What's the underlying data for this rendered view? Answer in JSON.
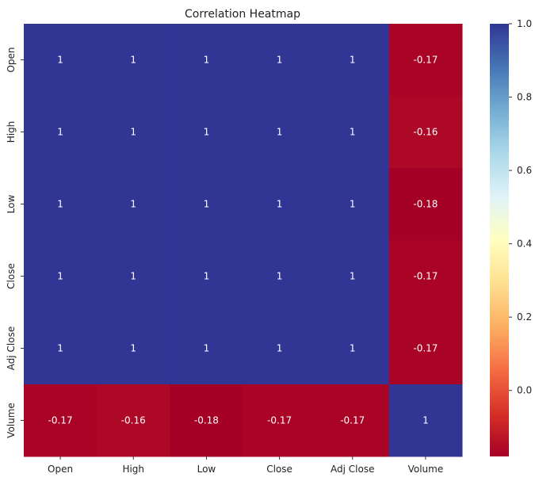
{
  "chart_data": {
    "type": "heatmap",
    "title": "Correlation Heatmap",
    "xlabel": "",
    "ylabel": "",
    "x_categories": [
      "Open",
      "High",
      "Low",
      "Close",
      "Adj Close",
      "Volume"
    ],
    "y_categories": [
      "Open",
      "High",
      "Low",
      "Close",
      "Adj Close",
      "Volume"
    ],
    "values": [
      [
        1,
        1,
        1,
        1,
        1,
        -0.17
      ],
      [
        1,
        1,
        1,
        1,
        1,
        -0.16
      ],
      [
        1,
        1,
        1,
        1,
        1,
        -0.18
      ],
      [
        1,
        1,
        1,
        1,
        1,
        -0.17
      ],
      [
        1,
        1,
        1,
        1,
        1,
        -0.17
      ],
      [
        -0.17,
        -0.16,
        -0.18,
        -0.17,
        -0.17,
        1
      ]
    ],
    "cell_labels": [
      [
        "1",
        "1",
        "1",
        "1",
        "1",
        "-0.17"
      ],
      [
        "1",
        "1",
        "1",
        "1",
        "1",
        "-0.16"
      ],
      [
        "1",
        "1",
        "1",
        "1",
        "1",
        "-0.18"
      ],
      [
        "1",
        "1",
        "1",
        "1",
        "1",
        "-0.17"
      ],
      [
        "1",
        "1",
        "1",
        "1",
        "1",
        "-0.17"
      ],
      [
        "-0.17",
        "-0.16",
        "-0.18",
        "-0.17",
        "-0.17",
        "1"
      ]
    ],
    "colormap": "RdYlBu",
    "vmin": -0.18,
    "vmax": 1.0,
    "colorbar_ticks": [
      0.0,
      0.2,
      0.4,
      0.6,
      0.8,
      1.0
    ],
    "colorbar_tick_labels": [
      "0.0",
      "0.2",
      "0.4",
      "0.6",
      "0.8",
      "1.0"
    ],
    "grid": false,
    "annotation_color": "#ffffff"
  }
}
